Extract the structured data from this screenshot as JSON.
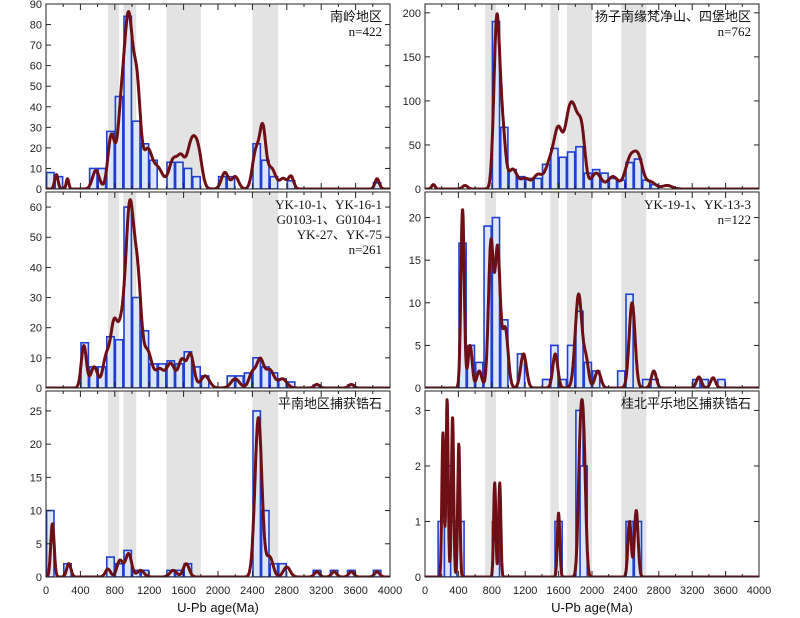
{
  "xlabel": "U-Pb age(Ma)",
  "colors": {
    "band": "#e3e3e3",
    "bar_fill": "#dce6f5",
    "bar_stroke": "#1f3fd4",
    "curve": "#6e0f15",
    "frame": "#222222"
  },
  "chart_data": [
    {
      "type": "histogram+kde",
      "panel": "top-left",
      "labels": [
        "南岭地区",
        "n=422"
      ],
      "xlim": [
        0,
        4000
      ],
      "ylim": [
        0,
        90
      ],
      "yticks": [
        0,
        10,
        20,
        30,
        40,
        50,
        60,
        70,
        80,
        90
      ],
      "shaded_bands": [
        [
          720,
          850
        ],
        [
          900,
          1050
        ],
        [
          1400,
          1800
        ],
        [
          2400,
          2700
        ]
      ],
      "bar_width": 100,
      "bars": [
        [
          50,
          8
        ],
        [
          150,
          6
        ],
        [
          550,
          10
        ],
        [
          650,
          10
        ],
        [
          750,
          28
        ],
        [
          850,
          45
        ],
        [
          950,
          84
        ],
        [
          1050,
          33
        ],
        [
          1150,
          22
        ],
        [
          1250,
          14
        ],
        [
          1450,
          13
        ],
        [
          1550,
          13
        ],
        [
          1650,
          10
        ],
        [
          1750,
          6
        ],
        [
          2050,
          6
        ],
        [
          2150,
          6
        ],
        [
          2450,
          22
        ],
        [
          2550,
          14
        ],
        [
          2650,
          6
        ],
        [
          2850,
          4
        ],
        [
          3850,
          3
        ]
      ],
      "peaks": [
        [
          120,
          7,
          20
        ],
        [
          250,
          5,
          15
        ],
        [
          580,
          9,
          40
        ],
        [
          760,
          26,
          40
        ],
        [
          870,
          30,
          40
        ],
        [
          960,
          82,
          50
        ],
        [
          1060,
          45,
          40
        ],
        [
          1180,
          18,
          50
        ],
        [
          1300,
          10,
          60
        ],
        [
          1480,
          14,
          50
        ],
        [
          1570,
          12,
          40
        ],
        [
          1700,
          24,
          60
        ],
        [
          1780,
          10,
          40
        ],
        [
          2080,
          8,
          40
        ],
        [
          2200,
          6,
          40
        ],
        [
          2440,
          18,
          40
        ],
        [
          2520,
          28,
          35
        ],
        [
          2620,
          10,
          50
        ],
        [
          2760,
          5,
          40
        ],
        [
          2850,
          6,
          30
        ],
        [
          3850,
          5,
          25
        ]
      ]
    },
    {
      "type": "histogram+kde",
      "panel": "middle-left",
      "labels": [
        "YK-10-1、YK-16-1",
        "G0103-1、G0104-1",
        "YK-27、YK-75",
        "n=261"
      ],
      "xlim": [
        0,
        4000
      ],
      "ylim": [
        0,
        65
      ],
      "yticks": [
        0,
        10,
        20,
        30,
        40,
        50,
        60
      ],
      "shaded_bands": [
        [
          720,
          850
        ],
        [
          900,
          1050
        ],
        [
          1400,
          1800
        ],
        [
          2400,
          2700
        ]
      ],
      "bar_width": 100,
      "bars": [
        [
          450,
          15
        ],
        [
          550,
          7
        ],
        [
          650,
          7
        ],
        [
          750,
          17
        ],
        [
          850,
          16
        ],
        [
          950,
          60
        ],
        [
          1050,
          30
        ],
        [
          1150,
          19
        ],
        [
          1250,
          8
        ],
        [
          1350,
          8
        ],
        [
          1450,
          9
        ],
        [
          1550,
          8
        ],
        [
          1650,
          12
        ],
        [
          1750,
          7
        ],
        [
          1850,
          4
        ],
        [
          2150,
          4
        ],
        [
          2250,
          4
        ],
        [
          2350,
          5
        ],
        [
          2450,
          10
        ],
        [
          2550,
          7
        ],
        [
          2650,
          5
        ],
        [
          2750,
          3
        ],
        [
          2850,
          2
        ],
        [
          3150,
          1
        ],
        [
          3550,
          1
        ]
      ],
      "peaks": [
        [
          440,
          14,
          30
        ],
        [
          560,
          7,
          40
        ],
        [
          700,
          10,
          40
        ],
        [
          790,
          20,
          40
        ],
        [
          870,
          15,
          40
        ],
        [
          975,
          60,
          50
        ],
        [
          1070,
          30,
          40
        ],
        [
          1180,
          12,
          50
        ],
        [
          1320,
          6,
          50
        ],
        [
          1450,
          8,
          50
        ],
        [
          1580,
          9,
          40
        ],
        [
          1680,
          11,
          40
        ],
        [
          1850,
          4,
          50
        ],
        [
          2200,
          3,
          50
        ],
        [
          2400,
          5,
          40
        ],
        [
          2490,
          9,
          40
        ],
        [
          2600,
          6,
          50
        ],
        [
          2750,
          3,
          50
        ],
        [
          3150,
          1.2,
          30
        ],
        [
          3550,
          1.2,
          30
        ]
      ]
    },
    {
      "type": "histogram+kde",
      "panel": "bottom-left",
      "labels": [
        "平南地区捕获锆石"
      ],
      "xlim": [
        0,
        4000
      ],
      "ylim": [
        0,
        28
      ],
      "yticks": [
        0,
        5,
        10,
        15,
        20,
        25
      ],
      "shaded_bands": [
        [
          720,
          850
        ],
        [
          900,
          1050
        ],
        [
          1400,
          1800
        ],
        [
          2400,
          2700
        ]
      ],
      "bar_width": 100,
      "bars": [
        [
          50,
          10
        ],
        [
          250,
          2
        ],
        [
          350,
          0
        ],
        [
          750,
          3
        ],
        [
          850,
          2
        ],
        [
          950,
          4
        ],
        [
          1050,
          1
        ],
        [
          1150,
          1
        ],
        [
          1450,
          1
        ],
        [
          1550,
          1
        ],
        [
          1650,
          2
        ],
        [
          2450,
          25
        ],
        [
          2550,
          10
        ],
        [
          2650,
          2
        ],
        [
          2750,
          2
        ],
        [
          3150,
          1
        ],
        [
          3350,
          1
        ],
        [
          3550,
          1
        ],
        [
          3850,
          1
        ]
      ],
      "peaks": [
        [
          75,
          8,
          20
        ],
        [
          265,
          2,
          25
        ],
        [
          720,
          1.2,
          30
        ],
        [
          860,
          2.5,
          35
        ],
        [
          960,
          3.5,
          35
        ],
        [
          1100,
          1,
          40
        ],
        [
          1480,
          1,
          40
        ],
        [
          1630,
          2,
          35
        ],
        [
          2470,
          24,
          40
        ],
        [
          2600,
          3,
          40
        ],
        [
          2800,
          1.5,
          40
        ],
        [
          3150,
          0.8,
          30
        ],
        [
          3350,
          0.8,
          30
        ],
        [
          3550,
          0.8,
          30
        ],
        [
          3850,
          0.8,
          30
        ]
      ]
    },
    {
      "type": "histogram+kde",
      "panel": "top-right",
      "labels": [
        "扬子南缘梵净山、四堡地区",
        "n=762"
      ],
      "xlim": [
        0,
        4000
      ],
      "ylim": [
        0,
        210
      ],
      "yticks": [
        0,
        50,
        100,
        150,
        200
      ],
      "shaded_bands": [
        [
          720,
          850
        ],
        [
          1500,
          1600
        ],
        [
          1700,
          2000
        ],
        [
          2350,
          2650
        ]
      ],
      "bar_width": 100,
      "bars": [
        [
          850,
          190
        ],
        [
          950,
          70
        ],
        [
          1050,
          22
        ],
        [
          1150,
          14
        ],
        [
          1250,
          12
        ],
        [
          1350,
          12
        ],
        [
          1450,
          28
        ],
        [
          1550,
          46
        ],
        [
          1650,
          36
        ],
        [
          1750,
          42
        ],
        [
          1850,
          48
        ],
        [
          1950,
          18
        ],
        [
          2050,
          22
        ],
        [
          2150,
          18
        ],
        [
          2250,
          12
        ],
        [
          2350,
          10
        ],
        [
          2450,
          30
        ],
        [
          2550,
          34
        ],
        [
          2650,
          10
        ],
        [
          2750,
          5
        ]
      ],
      "peaks": [
        [
          100,
          5,
          20
        ],
        [
          480,
          4,
          30
        ],
        [
          860,
          190,
          35
        ],
        [
          930,
          60,
          35
        ],
        [
          1050,
          22,
          50
        ],
        [
          1200,
          12,
          60
        ],
        [
          1350,
          15,
          50
        ],
        [
          1500,
          30,
          60
        ],
        [
          1600,
          60,
          50
        ],
        [
          1720,
          70,
          50
        ],
        [
          1800,
          65,
          50
        ],
        [
          1880,
          55,
          40
        ],
        [
          2050,
          18,
          60
        ],
        [
          2250,
          14,
          60
        ],
        [
          2460,
          35,
          60
        ],
        [
          2560,
          30,
          50
        ],
        [
          2700,
          8,
          60
        ],
        [
          2900,
          4,
          60
        ]
      ]
    },
    {
      "type": "histogram+kde",
      "panel": "middle-right",
      "labels": [
        "YK-19-1、YK-13-3",
        "n=122"
      ],
      "xlim": [
        0,
        4000
      ],
      "ylim": [
        0,
        23
      ],
      "yticks": [
        0,
        5,
        10,
        15,
        20
      ],
      "shaded_bands": [
        [
          720,
          850
        ],
        [
          1500,
          1600
        ],
        [
          1700,
          2000
        ],
        [
          2350,
          2650
        ]
      ],
      "bar_width": 100,
      "bars": [
        [
          350,
          0
        ],
        [
          450,
          17
        ],
        [
          550,
          5
        ],
        [
          650,
          3
        ],
        [
          750,
          19
        ],
        [
          850,
          20
        ],
        [
          950,
          8
        ],
        [
          1050,
          0
        ],
        [
          1150,
          4
        ],
        [
          1450,
          1
        ],
        [
          1550,
          5
        ],
        [
          1650,
          1
        ],
        [
          1750,
          5
        ],
        [
          1850,
          9
        ],
        [
          1950,
          3
        ],
        [
          2050,
          2
        ],
        [
          2350,
          2
        ],
        [
          2450,
          11
        ],
        [
          2650,
          1
        ],
        [
          2750,
          1
        ],
        [
          3250,
          1
        ],
        [
          3350,
          1
        ],
        [
          3550,
          1
        ]
      ],
      "peaks": [
        [
          450,
          21,
          20
        ],
        [
          540,
          5,
          25
        ],
        [
          650,
          2,
          30
        ],
        [
          790,
          17,
          30
        ],
        [
          870,
          16,
          30
        ],
        [
          960,
          7,
          35
        ],
        [
          1180,
          4,
          35
        ],
        [
          1560,
          4,
          30
        ],
        [
          1840,
          11,
          40
        ],
        [
          1930,
          3,
          30
        ],
        [
          2070,
          2,
          35
        ],
        [
          2480,
          10,
          35
        ],
        [
          2740,
          2,
          30
        ],
        [
          3280,
          1.3,
          30
        ],
        [
          3450,
          1.2,
          30
        ]
      ]
    },
    {
      "type": "histogram+kde",
      "panel": "bottom-right",
      "labels": [
        "桂北平乐地区捕获锆石"
      ],
      "xlim": [
        0,
        4000
      ],
      "ylim": [
        0,
        3.35
      ],
      "yticks": [
        0,
        1,
        2,
        3
      ],
      "shaded_bands": [
        [
          720,
          850
        ],
        [
          1500,
          1600
        ],
        [
          1700,
          2000
        ],
        [
          2350,
          2650
        ]
      ],
      "bar_width": 100,
      "bars": [
        [
          200,
          1
        ],
        [
          275,
          2
        ],
        [
          350,
          1
        ],
        [
          425,
          1
        ],
        [
          850,
          1
        ],
        [
          1600,
          1
        ],
        [
          1850,
          3
        ],
        [
          1900,
          2
        ],
        [
          2450,
          1
        ],
        [
          2550,
          1
        ]
      ],
      "peaks": [
        [
          215,
          2.6,
          13
        ],
        [
          265,
          3.2,
          13
        ],
        [
          330,
          2.9,
          13
        ],
        [
          405,
          2.4,
          13
        ],
        [
          835,
          1.7,
          13
        ],
        [
          895,
          1.7,
          13
        ],
        [
          1600,
          1.15,
          15
        ],
        [
          1860,
          2.2,
          25
        ],
        [
          1900,
          2.2,
          25
        ],
        [
          2450,
          1.0,
          20
        ],
        [
          2530,
          1.2,
          22
        ]
      ]
    }
  ]
}
